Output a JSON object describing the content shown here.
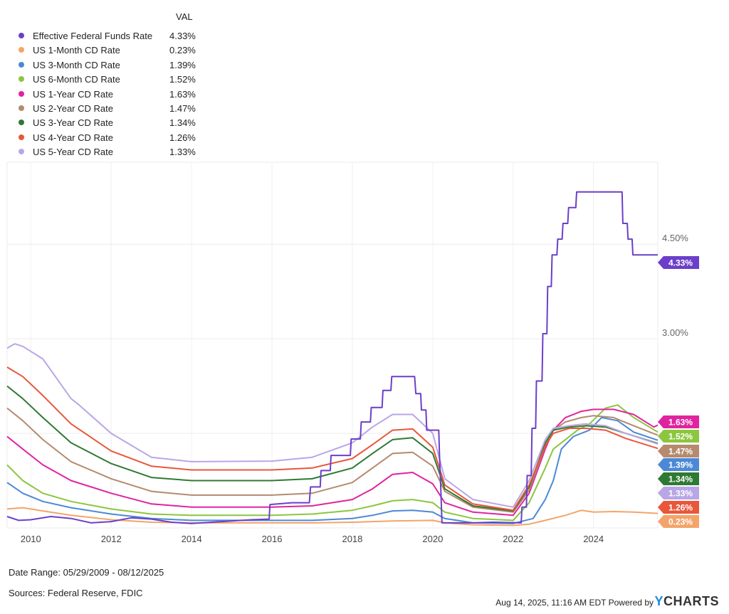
{
  "legend_header": "VAL",
  "footer": {
    "date_range": "Date Range: 05/29/2009 - 08/12/2025",
    "sources": "Sources: Federal Reserve, FDIC",
    "timestamp": "Aug 14, 2025, 11:16 AM EDT Powered by",
    "brand_y": "Y",
    "brand_rest": "CHARTS"
  },
  "chart_data": {
    "type": "line",
    "title": "",
    "xlabel": "",
    "ylabel": "",
    "x_ticks": [
      "2010",
      "2012",
      "2014",
      "2016",
      "2018",
      "2020",
      "2022",
      "2024"
    ],
    "y_ticks": [
      {
        "value": 3.0,
        "label": "3.00%"
      },
      {
        "value": 4.5,
        "label": "4.50%"
      }
    ],
    "xlim": [
      2009.41,
      2025.6
    ],
    "ylim": [
      0,
      5.8
    ],
    "grid": true,
    "legend_placement": "top-left",
    "series": [
      {
        "name": "Effective Federal Funds Rate",
        "value": "4.33%",
        "color": "#6b3fc9",
        "points": [
          [
            2009.41,
            0.18
          ],
          [
            2009.7,
            0.12
          ],
          [
            2010.0,
            0.13
          ],
          [
            2010.5,
            0.18
          ],
          [
            2011.0,
            0.15
          ],
          [
            2011.5,
            0.08
          ],
          [
            2012.0,
            0.1
          ],
          [
            2012.5,
            0.16
          ],
          [
            2013.0,
            0.14
          ],
          [
            2013.5,
            0.09
          ],
          [
            2014.0,
            0.07
          ],
          [
            2014.5,
            0.09
          ],
          [
            2015.0,
            0.11
          ],
          [
            2015.5,
            0.13
          ],
          [
            2015.93,
            0.14
          ],
          [
            2015.95,
            0.37
          ],
          [
            2016.5,
            0.4
          ],
          [
            2016.93,
            0.4
          ],
          [
            2016.96,
            0.65
          ],
          [
            2017.2,
            0.65
          ],
          [
            2017.22,
            0.91
          ],
          [
            2017.45,
            0.91
          ],
          [
            2017.47,
            1.15
          ],
          [
            2017.95,
            1.15
          ],
          [
            2017.97,
            1.41
          ],
          [
            2018.2,
            1.41
          ],
          [
            2018.22,
            1.68
          ],
          [
            2018.45,
            1.68
          ],
          [
            2018.47,
            1.91
          ],
          [
            2018.74,
            1.91
          ],
          [
            2018.76,
            2.18
          ],
          [
            2018.96,
            2.18
          ],
          [
            2018.98,
            2.4
          ],
          [
            2019.55,
            2.4
          ],
          [
            2019.58,
            2.13
          ],
          [
            2019.7,
            2.13
          ],
          [
            2019.72,
            1.87
          ],
          [
            2019.83,
            1.87
          ],
          [
            2019.85,
            1.55
          ],
          [
            2020.15,
            1.55
          ],
          [
            2020.17,
            1.1
          ],
          [
            2020.2,
            0.65
          ],
          [
            2020.23,
            0.08
          ],
          [
            2021.0,
            0.08
          ],
          [
            2021.5,
            0.09
          ],
          [
            2022.2,
            0.08
          ],
          [
            2022.22,
            0.33
          ],
          [
            2022.33,
            0.33
          ],
          [
            2022.35,
            0.83
          ],
          [
            2022.45,
            0.83
          ],
          [
            2022.47,
            1.58
          ],
          [
            2022.56,
            1.58
          ],
          [
            2022.58,
            2.33
          ],
          [
            2022.72,
            2.33
          ],
          [
            2022.74,
            3.08
          ],
          [
            2022.84,
            3.08
          ],
          [
            2022.86,
            3.83
          ],
          [
            2022.95,
            3.83
          ],
          [
            2022.97,
            4.33
          ],
          [
            2023.09,
            4.33
          ],
          [
            2023.11,
            4.58
          ],
          [
            2023.22,
            4.58
          ],
          [
            2023.24,
            4.83
          ],
          [
            2023.36,
            4.83
          ],
          [
            2023.38,
            5.08
          ],
          [
            2023.56,
            5.08
          ],
          [
            2023.58,
            5.33
          ],
          [
            2024.71,
            5.33
          ],
          [
            2024.73,
            4.83
          ],
          [
            2024.84,
            4.83
          ],
          [
            2024.86,
            4.58
          ],
          [
            2024.96,
            4.58
          ],
          [
            2024.98,
            4.33
          ],
          [
            2025.6,
            4.33
          ]
        ]
      },
      {
        "name": "US 1-Month CD Rate",
        "value": "0.23%",
        "color": "#f4a46a",
        "points": [
          [
            2009.41,
            0.3
          ],
          [
            2009.8,
            0.32
          ],
          [
            2010.3,
            0.27
          ],
          [
            2011.0,
            0.2
          ],
          [
            2012.0,
            0.13
          ],
          [
            2013.0,
            0.09
          ],
          [
            2014.0,
            0.08
          ],
          [
            2016.0,
            0.08
          ],
          [
            2017.0,
            0.08
          ],
          [
            2018.0,
            0.09
          ],
          [
            2019.0,
            0.11
          ],
          [
            2020.0,
            0.12
          ],
          [
            2020.3,
            0.08
          ],
          [
            2021.0,
            0.05
          ],
          [
            2022.0,
            0.04
          ],
          [
            2022.4,
            0.06
          ],
          [
            2022.8,
            0.12
          ],
          [
            2023.3,
            0.2
          ],
          [
            2023.7,
            0.28
          ],
          [
            2024.0,
            0.25
          ],
          [
            2024.5,
            0.26
          ],
          [
            2025.0,
            0.25
          ],
          [
            2025.6,
            0.23
          ]
        ]
      },
      {
        "name": "US 3-Month CD Rate",
        "value": "1.39%",
        "color": "#4b89d6",
        "points": [
          [
            2009.41,
            0.72
          ],
          [
            2009.8,
            0.55
          ],
          [
            2010.3,
            0.42
          ],
          [
            2011.0,
            0.32
          ],
          [
            2012.0,
            0.22
          ],
          [
            2013.0,
            0.15
          ],
          [
            2014.0,
            0.12
          ],
          [
            2016.0,
            0.12
          ],
          [
            2017.0,
            0.12
          ],
          [
            2018.0,
            0.15
          ],
          [
            2018.5,
            0.2
          ],
          [
            2019.0,
            0.27
          ],
          [
            2019.5,
            0.28
          ],
          [
            2020.0,
            0.25
          ],
          [
            2020.3,
            0.15
          ],
          [
            2021.0,
            0.08
          ],
          [
            2022.0,
            0.07
          ],
          [
            2022.5,
            0.15
          ],
          [
            2022.8,
            0.45
          ],
          [
            2023.0,
            0.75
          ],
          [
            2023.2,
            1.25
          ],
          [
            2023.5,
            1.45
          ],
          [
            2023.9,
            1.55
          ],
          [
            2024.2,
            1.75
          ],
          [
            2024.6,
            1.7
          ],
          [
            2025.0,
            1.52
          ],
          [
            2025.6,
            1.39
          ]
        ]
      },
      {
        "name": "US 6-Month CD Rate",
        "value": "1.52%",
        "color": "#8cc63f",
        "points": [
          [
            2009.41,
            1.0
          ],
          [
            2009.8,
            0.75
          ],
          [
            2010.3,
            0.55
          ],
          [
            2011.0,
            0.42
          ],
          [
            2012.0,
            0.3
          ],
          [
            2013.0,
            0.22
          ],
          [
            2014.0,
            0.2
          ],
          [
            2016.0,
            0.2
          ],
          [
            2017.0,
            0.22
          ],
          [
            2018.0,
            0.28
          ],
          [
            2018.5,
            0.35
          ],
          [
            2019.0,
            0.43
          ],
          [
            2019.5,
            0.45
          ],
          [
            2020.0,
            0.4
          ],
          [
            2020.3,
            0.25
          ],
          [
            2021.0,
            0.15
          ],
          [
            2022.0,
            0.12
          ],
          [
            2022.4,
            0.4
          ],
          [
            2022.8,
            0.95
          ],
          [
            2023.0,
            1.25
          ],
          [
            2023.3,
            1.4
          ],
          [
            2023.6,
            1.55
          ],
          [
            2023.9,
            1.65
          ],
          [
            2024.3,
            1.9
          ],
          [
            2024.6,
            1.95
          ],
          [
            2025.0,
            1.75
          ],
          [
            2025.6,
            1.52
          ]
        ]
      },
      {
        "name": "US 1-Year CD Rate",
        "value": "1.63%",
        "color": "#e0249f",
        "points": [
          [
            2009.41,
            1.45
          ],
          [
            2009.8,
            1.25
          ],
          [
            2010.3,
            1.0
          ],
          [
            2011.0,
            0.75
          ],
          [
            2012.0,
            0.55
          ],
          [
            2013.0,
            0.38
          ],
          [
            2014.0,
            0.33
          ],
          [
            2016.0,
            0.33
          ],
          [
            2017.0,
            0.35
          ],
          [
            2018.0,
            0.45
          ],
          [
            2018.5,
            0.62
          ],
          [
            2019.0,
            0.85
          ],
          [
            2019.5,
            0.88
          ],
          [
            2020.0,
            0.7
          ],
          [
            2020.3,
            0.4
          ],
          [
            2021.0,
            0.25
          ],
          [
            2022.0,
            0.2
          ],
          [
            2022.4,
            0.55
          ],
          [
            2022.8,
            1.25
          ],
          [
            2023.0,
            1.55
          ],
          [
            2023.3,
            1.75
          ],
          [
            2023.7,
            1.85
          ],
          [
            2024.0,
            1.88
          ],
          [
            2024.5,
            1.88
          ],
          [
            2025.0,
            1.8
          ],
          [
            2025.5,
            1.6
          ],
          [
            2025.6,
            1.63
          ]
        ]
      },
      {
        "name": "US 2-Year CD Rate",
        "value": "1.47%",
        "color": "#b58a6e",
        "points": [
          [
            2009.41,
            1.9
          ],
          [
            2009.8,
            1.7
          ],
          [
            2010.3,
            1.4
          ],
          [
            2011.0,
            1.05
          ],
          [
            2012.0,
            0.78
          ],
          [
            2013.0,
            0.58
          ],
          [
            2014.0,
            0.52
          ],
          [
            2016.0,
            0.52
          ],
          [
            2017.0,
            0.55
          ],
          [
            2018.0,
            0.72
          ],
          [
            2018.5,
            0.95
          ],
          [
            2019.0,
            1.18
          ],
          [
            2019.5,
            1.2
          ],
          [
            2020.0,
            0.98
          ],
          [
            2020.3,
            0.58
          ],
          [
            2021.0,
            0.33
          ],
          [
            2022.0,
            0.25
          ],
          [
            2022.4,
            0.6
          ],
          [
            2022.8,
            1.3
          ],
          [
            2023.0,
            1.55
          ],
          [
            2023.3,
            1.68
          ],
          [
            2023.7,
            1.75
          ],
          [
            2024.0,
            1.78
          ],
          [
            2024.5,
            1.75
          ],
          [
            2025.0,
            1.62
          ],
          [
            2025.6,
            1.47
          ]
        ]
      },
      {
        "name": "US 3-Year CD Rate",
        "value": "1.34%",
        "color": "#2f7a33",
        "points": [
          [
            2009.41,
            2.25
          ],
          [
            2009.8,
            2.05
          ],
          [
            2010.3,
            1.75
          ],
          [
            2011.0,
            1.35
          ],
          [
            2012.0,
            1.02
          ],
          [
            2013.0,
            0.8
          ],
          [
            2014.0,
            0.75
          ],
          [
            2016.0,
            0.75
          ],
          [
            2017.0,
            0.78
          ],
          [
            2018.0,
            0.95
          ],
          [
            2018.5,
            1.18
          ],
          [
            2019.0,
            1.4
          ],
          [
            2019.5,
            1.43
          ],
          [
            2020.0,
            1.18
          ],
          [
            2020.3,
            0.62
          ],
          [
            2021.0,
            0.35
          ],
          [
            2022.0,
            0.27
          ],
          [
            2022.4,
            0.65
          ],
          [
            2022.8,
            1.35
          ],
          [
            2023.0,
            1.55
          ],
          [
            2023.4,
            1.6
          ],
          [
            2023.8,
            1.62
          ],
          [
            2024.3,
            1.6
          ],
          [
            2024.8,
            1.5
          ],
          [
            2025.6,
            1.34
          ]
        ]
      },
      {
        "name": "US 4-Year CD Rate",
        "value": "1.26%",
        "color": "#e8573a",
        "points": [
          [
            2009.41,
            2.55
          ],
          [
            2009.8,
            2.4
          ],
          [
            2010.3,
            2.1
          ],
          [
            2011.0,
            1.65
          ],
          [
            2012.0,
            1.22
          ],
          [
            2013.0,
            0.98
          ],
          [
            2014.0,
            0.92
          ],
          [
            2016.0,
            0.92
          ],
          [
            2017.0,
            0.95
          ],
          [
            2018.0,
            1.1
          ],
          [
            2018.5,
            1.32
          ],
          [
            2019.0,
            1.55
          ],
          [
            2019.5,
            1.57
          ],
          [
            2020.0,
            1.28
          ],
          [
            2020.3,
            0.68
          ],
          [
            2021.0,
            0.38
          ],
          [
            2022.0,
            0.28
          ],
          [
            2022.4,
            0.68
          ],
          [
            2022.8,
            1.3
          ],
          [
            2023.0,
            1.5
          ],
          [
            2023.4,
            1.58
          ],
          [
            2023.8,
            1.58
          ],
          [
            2024.3,
            1.55
          ],
          [
            2024.8,
            1.42
          ],
          [
            2025.6,
            1.26
          ]
        ]
      },
      {
        "name": "US 5-Year CD Rate",
        "value": "1.33%",
        "color": "#b9a6e6",
        "points": [
          [
            2009.41,
            2.85
          ],
          [
            2009.6,
            2.92
          ],
          [
            2009.8,
            2.88
          ],
          [
            2010.3,
            2.68
          ],
          [
            2011.0,
            2.05
          ],
          [
            2011.2,
            1.95
          ],
          [
            2012.0,
            1.5
          ],
          [
            2013.0,
            1.12
          ],
          [
            2014.0,
            1.05
          ],
          [
            2016.0,
            1.06
          ],
          [
            2017.0,
            1.12
          ],
          [
            2018.0,
            1.35
          ],
          [
            2018.5,
            1.6
          ],
          [
            2019.0,
            1.8
          ],
          [
            2019.5,
            1.8
          ],
          [
            2020.0,
            1.5
          ],
          [
            2020.3,
            0.78
          ],
          [
            2021.0,
            0.45
          ],
          [
            2022.0,
            0.33
          ],
          [
            2022.4,
            0.75
          ],
          [
            2022.8,
            1.4
          ],
          [
            2023.0,
            1.58
          ],
          [
            2023.4,
            1.62
          ],
          [
            2023.8,
            1.65
          ],
          [
            2024.3,
            1.62
          ],
          [
            2024.8,
            1.5
          ],
          [
            2025.6,
            1.33
          ]
        ]
      }
    ],
    "end_badges_order": [
      "4.33%",
      "1.63%",
      "1.52%",
      "1.47%",
      "1.39%",
      "1.34%",
      "1.33%",
      "1.26%",
      "0.23%"
    ]
  }
}
